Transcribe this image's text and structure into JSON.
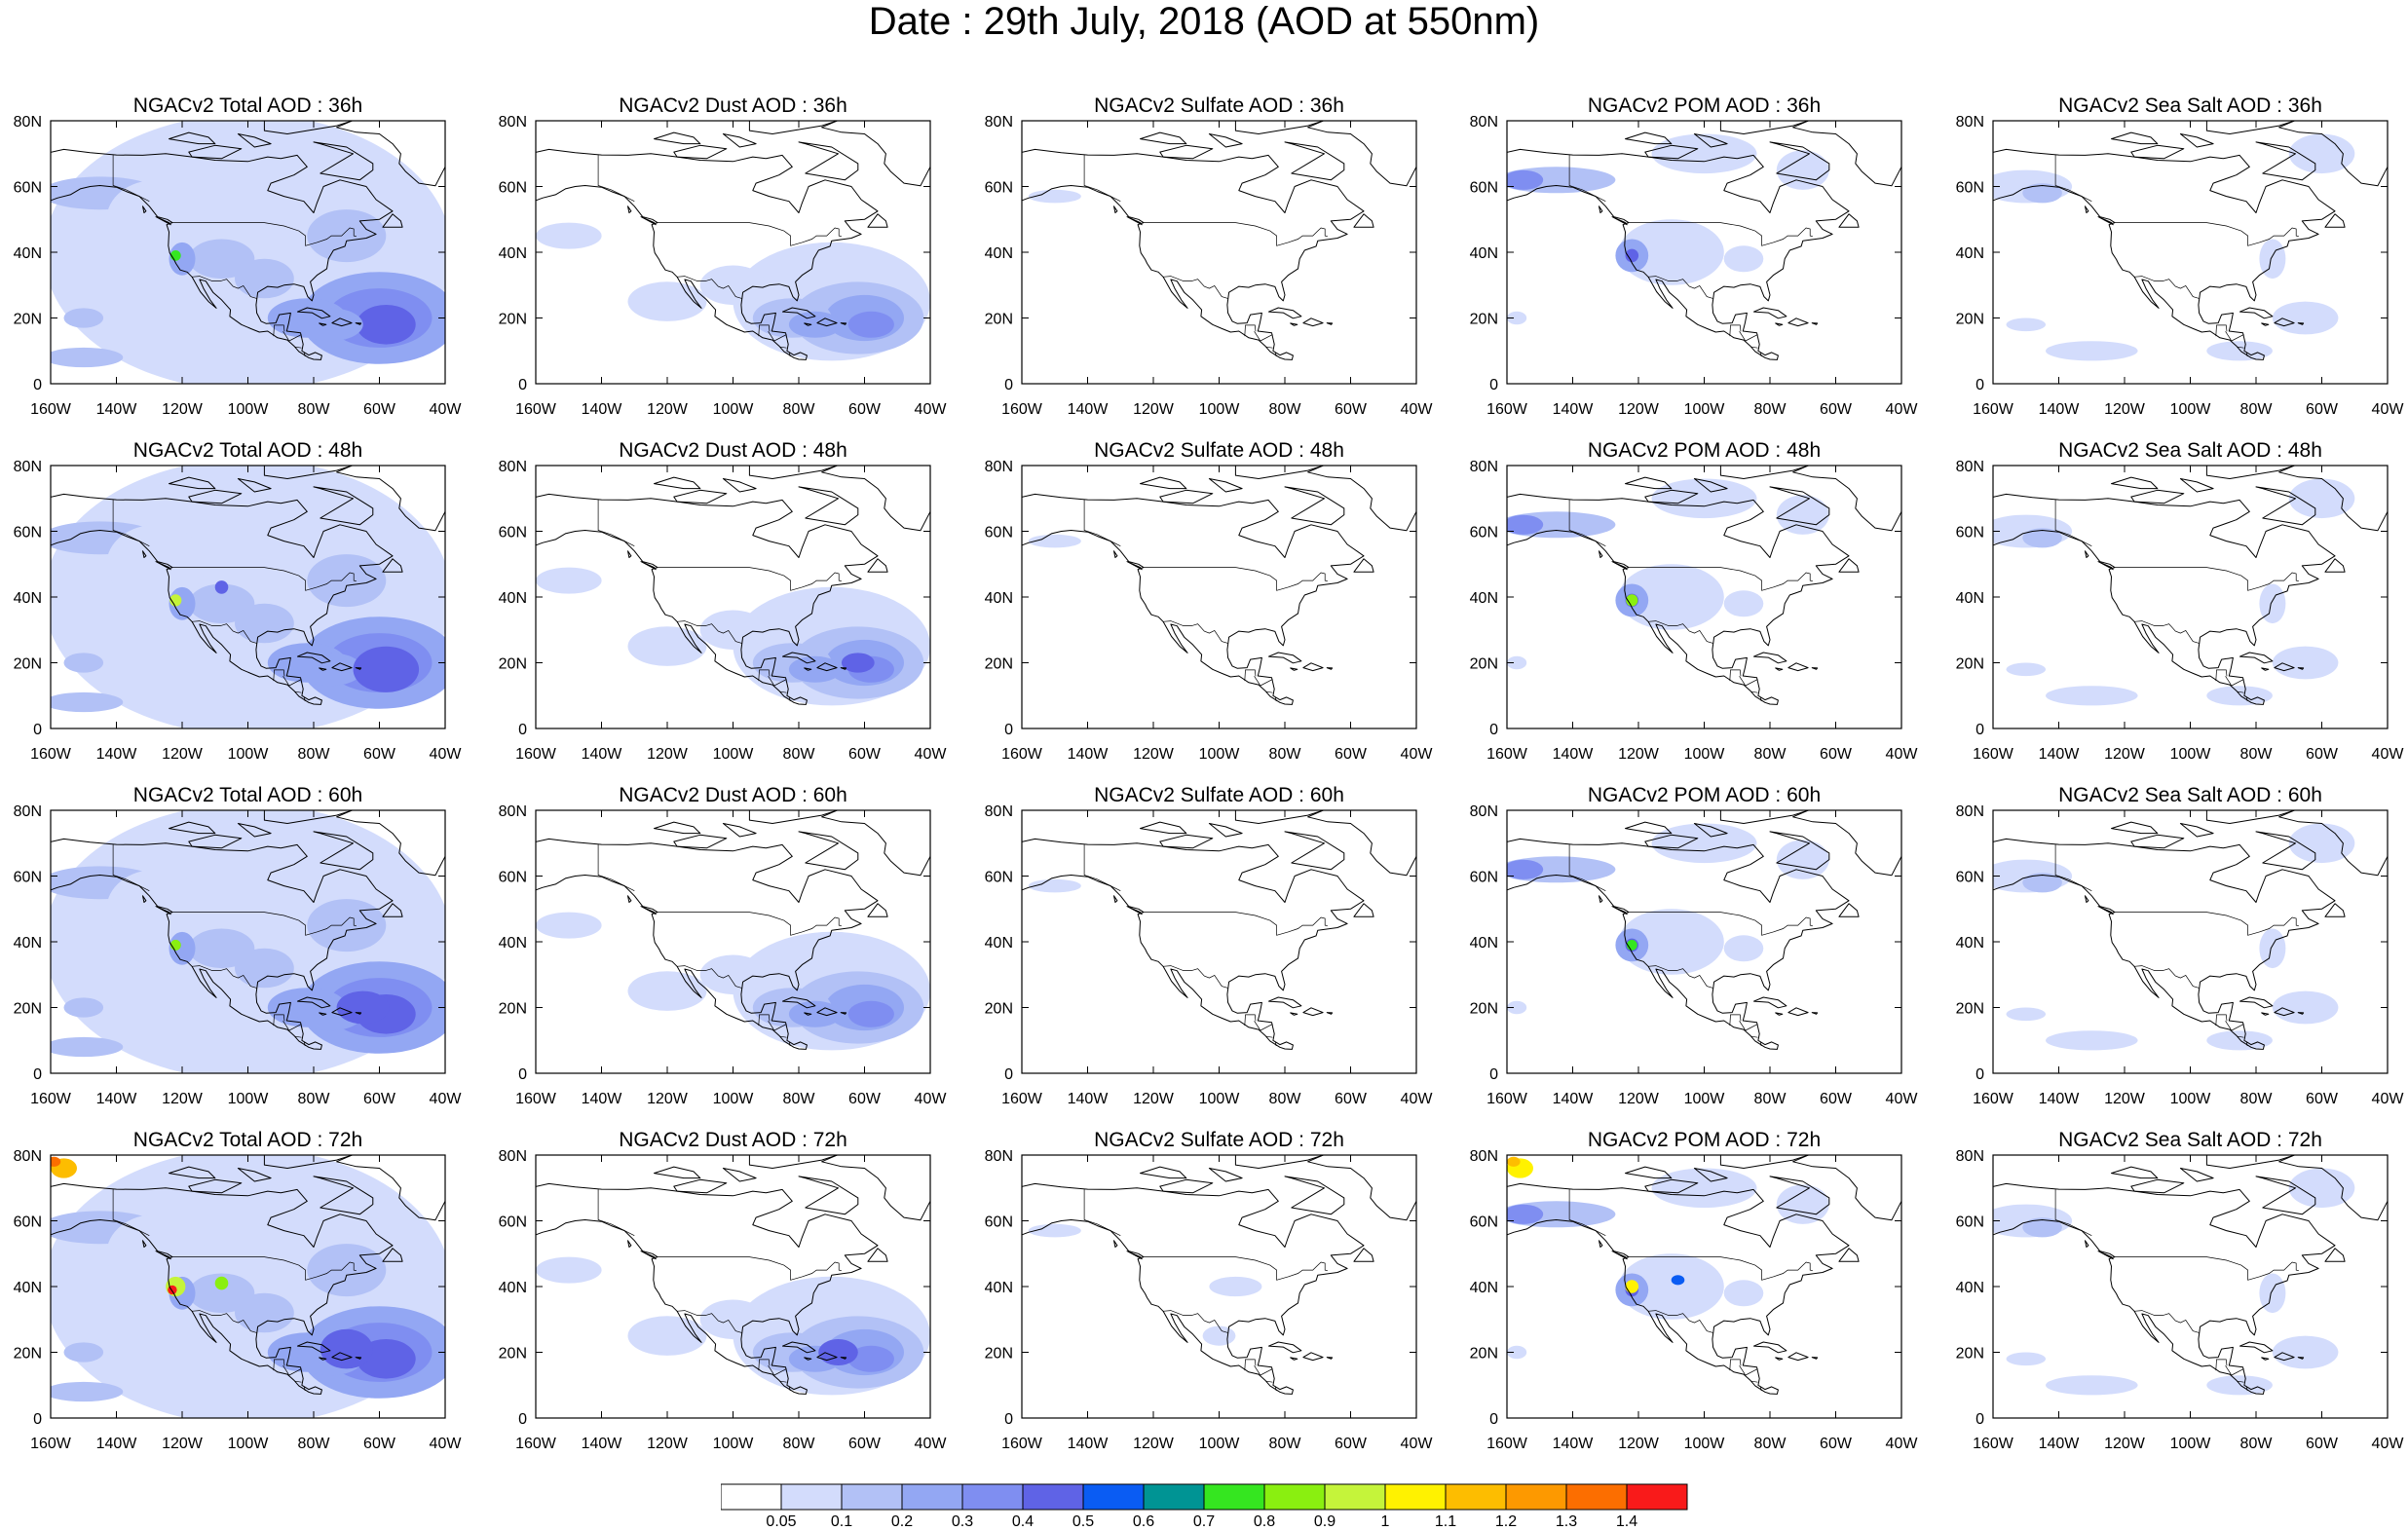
{
  "title": "Date : 29th July, 2018 (AOD at 550nm)",
  "x_ticks": [
    "160W",
    "140W",
    "120W",
    "100W",
    "80W",
    "60W",
    "40W"
  ],
  "y_ticks": [
    "0",
    "20N",
    "40N",
    "60N",
    "80N"
  ],
  "panel_titles": [
    [
      "NGACv2 Total AOD : 36h",
      "NGACv2 Dust AOD : 36h",
      "NGACv2 Sulfate AOD : 36h",
      "NGACv2 POM AOD : 36h",
      "NGACv2 Sea Salt AOD : 36h"
    ],
    [
      "NGACv2 Total AOD : 48h",
      "NGACv2 Dust AOD : 48h",
      "NGACv2 Sulfate AOD : 48h",
      "NGACv2 POM AOD : 48h",
      "NGACv2 Sea Salt AOD : 48h"
    ],
    [
      "NGACv2 Total AOD : 60h",
      "NGACv2 Dust AOD : 60h",
      "NGACv2 Sulfate AOD : 60h",
      "NGACv2 POM AOD : 60h",
      "NGACv2 Sea Salt AOD : 60h"
    ],
    [
      "NGACv2 Total AOD : 72h",
      "NGACv2 Dust AOD : 72h",
      "NGACv2 Sulfate AOD : 72h",
      "NGACv2 POM AOD : 72h",
      "NGACv2 Sea Salt  AOD : 72h"
    ]
  ],
  "colorbar": {
    "labels": [
      "0.05",
      "0.1",
      "0.2",
      "0.3",
      "0.4",
      "0.5",
      "0.6",
      "0.7",
      "0.8",
      "0.9",
      "1",
      "1.1",
      "1.2",
      "1.3",
      "1.4"
    ],
    "colors": [
      "#ffffff",
      "#d3dcfc",
      "#b2c1f6",
      "#93a7f3",
      "#7f8ef1",
      "#5f63e6",
      "#0a5cf3",
      "#009494",
      "#35e620",
      "#8aef10",
      "#c5f43a",
      "#fff200",
      "#fdbd00",
      "#fd9900",
      "#fc6e00",
      "#f91a1a"
    ]
  },
  "chart_data": {
    "type": "heatmap",
    "title": "Date : 29th July, 2018 (AOD at 550nm)",
    "variable": "AOD at 550nm",
    "lon_range": [
      -160,
      -40
    ],
    "lat_range": [
      0,
      80
    ],
    "species": [
      "Total",
      "Dust",
      "Sulfate",
      "POM",
      "Sea Salt"
    ],
    "forecast_hours": [
      "36h",
      "48h",
      "60h",
      "72h"
    ],
    "levels": [
      0.05,
      0.1,
      0.2,
      0.3,
      0.4,
      0.5,
      0.6,
      0.7,
      0.8,
      0.9,
      1,
      1.1,
      1.2,
      1.3,
      1.4
    ],
    "features": [
      {
        "species": "Total",
        "hour": "36h",
        "lon": -122,
        "lat": 39,
        "aod": 0.8
      },
      {
        "species": "Total",
        "hour": "48h",
        "lon": -122,
        "lat": 39,
        "aod": 1.1
      },
      {
        "species": "Total",
        "hour": "60h",
        "lon": -122,
        "lat": 39,
        "aod": 0.9
      },
      {
        "species": "Total",
        "hour": "72h",
        "lon": -122,
        "lat": 39,
        "aod": 1.4
      },
      {
        "species": "Total",
        "hour": "72h",
        "lon": -157,
        "lat": 77,
        "aod": 1.2
      },
      {
        "species": "Total",
        "hour": "36h",
        "lon": -60,
        "lat": 19,
        "aod": 0.5
      },
      {
        "species": "Dust",
        "hour": "36h",
        "lon": -60,
        "lat": 19,
        "aod": 0.4
      },
      {
        "species": "Dust",
        "hour": "48h",
        "lon": -62,
        "lat": 20,
        "aod": 0.5
      },
      {
        "species": "Dust",
        "hour": "72h",
        "lon": -68,
        "lat": 20,
        "aod": 0.4
      },
      {
        "species": "POM",
        "hour": "36h",
        "lon": -122,
        "lat": 39,
        "aod": 0.5
      },
      {
        "species": "POM",
        "hour": "48h",
        "lon": -122,
        "lat": 39,
        "aod": 0.9
      },
      {
        "species": "POM",
        "hour": "60h",
        "lon": -122,
        "lat": 39,
        "aod": 0.8
      },
      {
        "species": "POM",
        "hour": "72h",
        "lon": -122,
        "lat": 39,
        "aod": 1.2
      },
      {
        "species": "POM",
        "hour": "72h",
        "lon": -157,
        "lat": 77,
        "aod": 1.1
      },
      {
        "species": "Sea Salt",
        "hour": "72h",
        "lon": -150,
        "lat": 60,
        "aod": 0.2
      }
    ]
  }
}
